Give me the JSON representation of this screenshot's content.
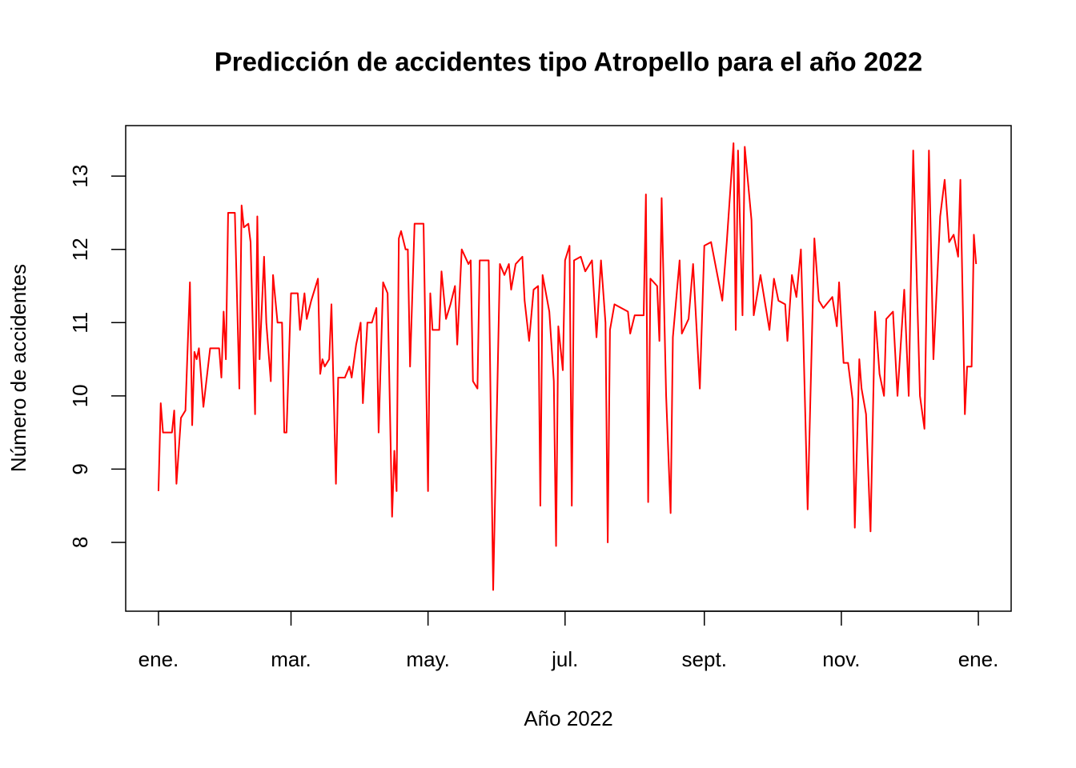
{
  "chart_data": {
    "type": "line",
    "title": "Predicción de accidentes tipo Atropello para el año 2022",
    "x_label": "Año 2022",
    "y_label": "Número de accidentes",
    "color": "#ff0000",
    "xlim": [
      -14.6,
      379.6
    ],
    "ylim": [
      7.06,
      13.69
    ],
    "xticks": [
      {
        "value": 0,
        "label": "ene."
      },
      {
        "value": 59,
        "label": "mar."
      },
      {
        "value": 120,
        "label": "may."
      },
      {
        "value": 181,
        "label": "jul."
      },
      {
        "value": 243,
        "label": "sept."
      },
      {
        "value": 304,
        "label": "nov."
      },
      {
        "value": 365,
        "label": "ene."
      }
    ],
    "yticks": [
      8,
      9,
      10,
      11,
      12,
      13
    ],
    "x": [
      0,
      1,
      2,
      6,
      7,
      8,
      10,
      12,
      14,
      15,
      16,
      17,
      18,
      20,
      23,
      27,
      28,
      29,
      30,
      31,
      34,
      36,
      37,
      38,
      40,
      41,
      43,
      44,
      45,
      47,
      48,
      50,
      51,
      53,
      55,
      56,
      57,
      59,
      62,
      63,
      65,
      66,
      68,
      71,
      72,
      73,
      74,
      76,
      77,
      79,
      80,
      83,
      85,
      86,
      88,
      90,
      91,
      93,
      95,
      97,
      98,
      100,
      102,
      104,
      105,
      106,
      107,
      108,
      110,
      111,
      112,
      114,
      118,
      120,
      121,
      122,
      125,
      126,
      128,
      130,
      132,
      133,
      135,
      138,
      139,
      140,
      142,
      143,
      147,
      149,
      152,
      154,
      156,
      157,
      159,
      162,
      163,
      165,
      167,
      169,
      170,
      171,
      174,
      176,
      177,
      178,
      180,
      181,
      183,
      184,
      185,
      188,
      190,
      193,
      195,
      197,
      199,
      200,
      201,
      203,
      209,
      210,
      212,
      216,
      217,
      218,
      219,
      222,
      223,
      224,
      226,
      228,
      229,
      232,
      233,
      236,
      238,
      241,
      243,
      246,
      251,
      253,
      256,
      257,
      258,
      260,
      261,
      264,
      265,
      268,
      272,
      274,
      276,
      279,
      280,
      282,
      284,
      286,
      287,
      289,
      292,
      294,
      296,
      300,
      302,
      303,
      305,
      307,
      309,
      310,
      312,
      313,
      315,
      317,
      319,
      321,
      323,
      324,
      327,
      329,
      332,
      334,
      336,
      339,
      341,
      343,
      345,
      348,
      350,
      352,
      354,
      356,
      357,
      359,
      360,
      362,
      363,
      364
    ],
    "values": [
      8.7,
      9.9,
      9.5,
      9.5,
      9.8,
      8.8,
      9.7,
      9.8,
      11.55,
      9.6,
      10.6,
      10.5,
      10.65,
      9.85,
      10.65,
      10.65,
      10.25,
      11.15,
      10.5,
      12.5,
      12.5,
      10.1,
      12.6,
      12.3,
      12.35,
      12.1,
      9.75,
      12.45,
      10.5,
      11.9,
      11.0,
      10.2,
      11.65,
      11.0,
      11.0,
      9.5,
      9.5,
      11.4,
      11.4,
      10.9,
      11.4,
      11.05,
      11.3,
      11.6,
      10.3,
      10.5,
      10.4,
      10.5,
      11.25,
      8.8,
      10.25,
      10.25,
      10.4,
      10.25,
      10.7,
      11.0,
      9.9,
      11.0,
      11.0,
      11.2,
      9.5,
      11.55,
      11.4,
      8.35,
      9.25,
      8.7,
      12.15,
      12.25,
      12.0,
      12.0,
      10.4,
      12.35,
      12.35,
      8.7,
      11.4,
      10.9,
      10.9,
      11.7,
      11.05,
      11.25,
      11.5,
      10.7,
      12.0,
      11.8,
      11.85,
      10.2,
      10.1,
      11.85,
      11.85,
      7.35,
      11.8,
      11.65,
      11.8,
      11.45,
      11.8,
      11.9,
      11.3,
      10.75,
      11.45,
      11.5,
      8.5,
      11.65,
      11.15,
      10.2,
      7.95,
      10.95,
      10.35,
      11.85,
      12.05,
      8.5,
      11.85,
      11.9,
      11.7,
      11.85,
      10.8,
      11.85,
      11.0,
      8.0,
      10.9,
      11.25,
      11.15,
      10.85,
      11.1,
      11.1,
      12.75,
      8.55,
      11.6,
      11.5,
      10.75,
      12.7,
      10.0,
      8.4,
      10.8,
      11.85,
      10.85,
      11.05,
      11.8,
      10.1,
      12.05,
      12.1,
      11.3,
      12.1,
      13.45,
      10.9,
      13.35,
      11.1,
      13.4,
      12.4,
      11.1,
      11.65,
      10.9,
      11.6,
      11.3,
      11.25,
      10.75,
      11.65,
      11.35,
      12.0,
      10.9,
      8.45,
      12.15,
      11.3,
      11.2,
      11.35,
      10.95,
      11.55,
      10.45,
      10.45,
      9.95,
      8.2,
      10.5,
      10.1,
      9.75,
      8.15,
      11.15,
      10.3,
      10.0,
      11.05,
      11.15,
      10.0,
      11.45,
      10.0,
      13.35,
      10.0,
      9.55,
      13.35,
      10.5,
      12.45,
      12.95,
      12.1,
      12.2,
      11.9,
      12.95,
      9.75,
      10.4,
      10.4,
      12.2,
      11.8
    ]
  }
}
